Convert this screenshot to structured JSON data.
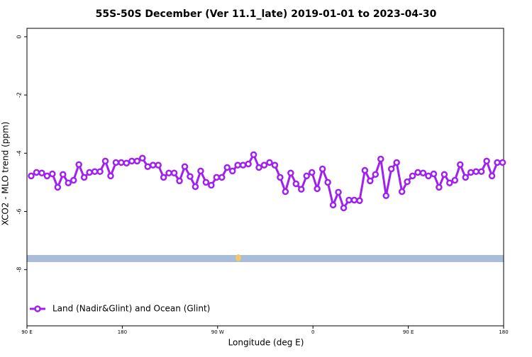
{
  "chart_data": {
    "type": "line",
    "title": "55S-50S December (Ver 11.1_late)   2019-01-01 to 2023-04-30",
    "x_label": "Longitude (deg E)",
    "y_label": "XCO2 - MLO trend (ppm)",
    "x": [
      94,
      99,
      104,
      109,
      114,
      119,
      124,
      129,
      134,
      139,
      144,
      149,
      154,
      159,
      164,
      169,
      174,
      179,
      184,
      189,
      194,
      199,
      204,
      209,
      214,
      219,
      224,
      229,
      234,
      239,
      244,
      249,
      254,
      259,
      264,
      269,
      274,
      279,
      284,
      289,
      294,
      299,
      304,
      309,
      314,
      319,
      324,
      329,
      334,
      339,
      344,
      349,
      354,
      359,
      364,
      369,
      374,
      379,
      384,
      389,
      394,
      399,
      404,
      409,
      414,
      419,
      424,
      429,
      434,
      439,
      444,
      449,
      454,
      459,
      464,
      469,
      474,
      479,
      484,
      489,
      494,
      499,
      504,
      509,
      514,
      519,
      524,
      529,
      534,
      539
    ],
    "series": [
      {
        "name": "Land (Nadir&Glint) and Ocean (Glint)",
        "color": "#a020f0",
        "values": [
          -4.78,
          -4.66,
          -4.68,
          -4.78,
          -4.71,
          -5.17,
          -4.73,
          -5.02,
          -4.93,
          -4.39,
          -4.83,
          -4.66,
          -4.63,
          -4.63,
          -4.27,
          -4.78,
          -4.32,
          -4.32,
          -4.34,
          -4.27,
          -4.27,
          -4.17,
          -4.46,
          -4.41,
          -4.41,
          -4.83,
          -4.68,
          -4.68,
          -4.95,
          -4.46,
          -4.8,
          -5.15,
          -4.61,
          -5.0,
          -5.1,
          -4.83,
          -4.83,
          -4.49,
          -4.61,
          -4.41,
          -4.41,
          -4.37,
          -4.05,
          -4.49,
          -4.41,
          -4.32,
          -4.41,
          -4.83,
          -5.32,
          -4.68,
          -5.05,
          -5.24,
          -4.78,
          -4.66,
          -5.22,
          -4.54,
          -5.0,
          -5.78,
          -5.34,
          -5.88,
          -5.61,
          -5.61,
          -5.63,
          -4.59,
          -4.95,
          -4.73,
          -4.2,
          -5.46,
          -4.54,
          -4.32,
          -5.32,
          -4.98,
          -4.78,
          -4.66,
          -4.68,
          -4.78,
          -4.71,
          -5.17,
          -4.73,
          -5.02,
          -4.93,
          -4.39,
          -4.83,
          -4.66,
          -4.63,
          -4.63,
          -4.27,
          -4.78,
          -4.32,
          -4.32
        ]
      }
    ],
    "xlim": [
      90,
      540
    ],
    "xticks": [
      {
        "value": 90,
        "label": "90 E"
      },
      180,
      {
        "value": 270,
        "label": "90 W"
      },
      {
        "value": 360,
        "label": "0"
      },
      {
        "value": 450,
        "label": "90 E"
      },
      {
        "value": 540,
        "label": "180"
      }
    ],
    "ylim": [
      -9.93,
      0.29
    ],
    "yticks": [
      0,
      -2,
      -4,
      -6,
      -8
    ],
    "legend": "bottom-left"
  }
}
